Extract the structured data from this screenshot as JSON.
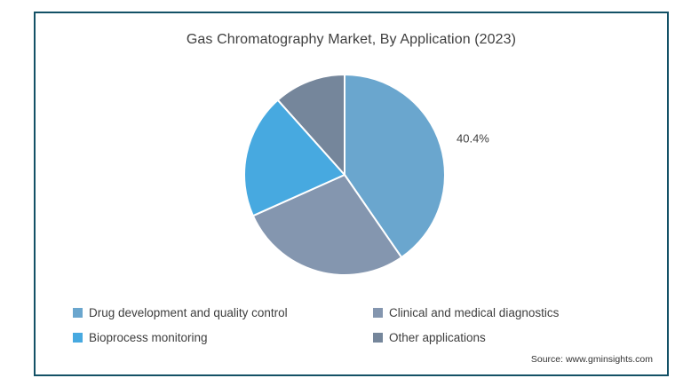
{
  "title": "Gas Chromatography Market, By Application (2023)",
  "source": "Source: www.gminsights.com",
  "frame": {
    "border_color": "#135166",
    "background": "#ffffff"
  },
  "chart_data": {
    "type": "pie",
    "title": "Gas Chromatography Market, By Application (2023)",
    "start_angle_deg": 0,
    "direction": "clockwise",
    "legend_position": "bottom",
    "annotations": [
      "40.4%"
    ],
    "slices": [
      {
        "label": "Drug development and quality control",
        "value": 40.4,
        "color": "#6aa6ce",
        "data_label": "40.4%"
      },
      {
        "label": "Clinical and medical diagnostics",
        "value": 27.9,
        "color": "#8496af",
        "data_label": ""
      },
      {
        "label": "Bioprocess monitoring",
        "value": 20.1,
        "color": "#47a9e0",
        "data_label": ""
      },
      {
        "label": "Other applications",
        "value": 11.6,
        "color": "#75869b",
        "data_label": ""
      }
    ]
  }
}
